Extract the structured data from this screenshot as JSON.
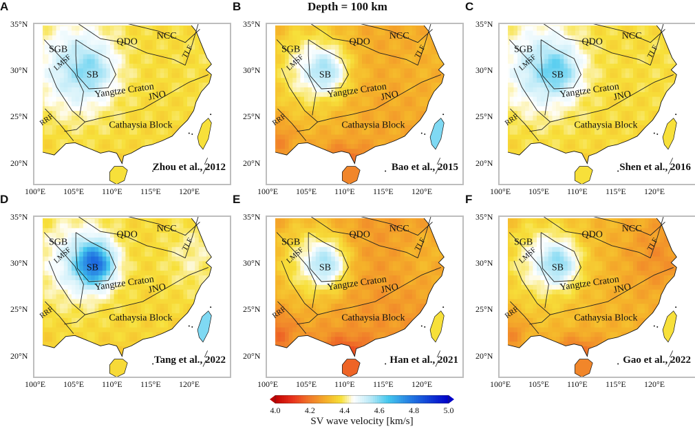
{
  "figure": {
    "title": "Depth = 100 km",
    "lat_ticks": [
      "35°N",
      "30°N",
      "25°N",
      "20°N"
    ],
    "lon_ticks": [
      "100°E",
      "105°E",
      "110°E",
      "115°E",
      "120°E"
    ],
    "region_labels": {
      "sgb": "SGB",
      "qdo": "QDO",
      "ncc": "NCC",
      "tlf": "TLF",
      "lmsf": "LMSF",
      "sb": "SB",
      "yangtze": "Yangtze Craton",
      "jno": "JNO",
      "rrf": "RRF",
      "cathaysia": "Cathaysia Block"
    }
  },
  "panels": [
    {
      "letter": "A",
      "citation": "Zhou et al., 2012",
      "model": {
        "west": 4.55,
        "sb": 4.62,
        "south": 4.37,
        "east": 4.38,
        "rim": 4.36
      }
    },
    {
      "letter": "B",
      "citation": "Bao et al., 2015",
      "model": {
        "west": 4.45,
        "sb": 4.6,
        "south": 4.28,
        "east": 4.3,
        "rim": 4.2
      }
    },
    {
      "letter": "C",
      "citation": "Shen et al., 2016",
      "model": {
        "west": 4.55,
        "sb": 4.66,
        "south": 4.37,
        "east": 4.38,
        "rim": 4.36
      }
    },
    {
      "letter": "D",
      "citation": "Tang et al., 2022",
      "model": {
        "west": 4.5,
        "sb": 4.85,
        "south": 4.36,
        "east": 4.42,
        "rim": 4.35
      }
    },
    {
      "letter": "E",
      "citation": "Han et al., 2021",
      "model": {
        "west": 4.42,
        "sb": 4.6,
        "south": 4.25,
        "east": 4.3,
        "rim": 4.15
      }
    },
    {
      "letter": "F",
      "citation": "Gao et al., 2022",
      "model": {
        "west": 4.45,
        "sb": 4.62,
        "south": 4.3,
        "east": 4.24,
        "rim": 4.2
      }
    }
  ],
  "colorbar": {
    "min": 4.0,
    "max": 5.0,
    "tick_labels": [
      "4.0",
      "4.2",
      "4.4",
      "4.6",
      "4.8",
      "5.0"
    ],
    "tick_values": [
      4.0,
      4.2,
      4.4,
      4.6,
      4.8,
      5.0
    ],
    "title": "SV wave velocity [km/s]",
    "stops": [
      {
        "v": 4.0,
        "color": "#c00000"
      },
      {
        "v": 4.1,
        "color": "#e8321c"
      },
      {
        "v": 4.2,
        "color": "#f07a2a"
      },
      {
        "v": 4.3,
        "color": "#f5b42a"
      },
      {
        "v": 4.38,
        "color": "#f7e03a"
      },
      {
        "v": 4.45,
        "color": "#ffffff"
      },
      {
        "v": 4.55,
        "color": "#b9e9f7"
      },
      {
        "v": 4.65,
        "color": "#45c8ee"
      },
      {
        "v": 4.8,
        "color": "#1f6fe0"
      },
      {
        "v": 5.0,
        "color": "#0000c8"
      }
    ]
  },
  "colors": {
    "frame": "#bdbdbd",
    "coast": "#111111",
    "boundary": "#222222"
  }
}
